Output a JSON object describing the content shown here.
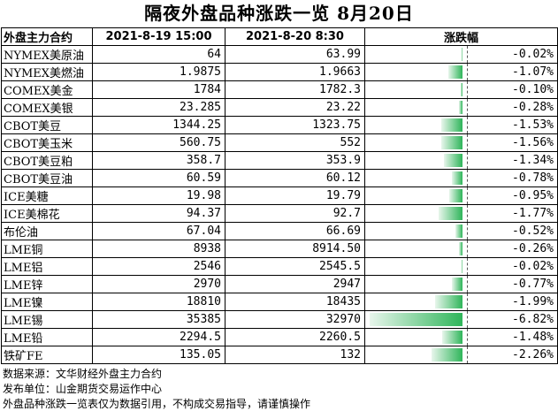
{
  "title": "隔夜外盘品种涨跌一览  8月20日",
  "headers": {
    "contract": "外盘主力合约",
    "prev": "2021-8-19 15:00",
    "curr": "2021-8-20 8:30",
    "change": "涨跌幅"
  },
  "colors": {
    "bar_dark": "#2fb55a",
    "bar_light": "#e8f6ec"
  },
  "rows": [
    {
      "name": "NYMEX美原油",
      "prev": "64",
      "curr": "63.99",
      "change": "-0.02%",
      "pct": -0.02
    },
    {
      "name": "NYMEX美燃油",
      "prev": "1.9875",
      "curr": "1.9663",
      "change": "-1.07%",
      "pct": -1.07
    },
    {
      "name": "COMEX美金",
      "prev": "1784",
      "curr": "1782.3",
      "change": "-0.10%",
      "pct": -0.1
    },
    {
      "name": "COMEX美银",
      "prev": "23.285",
      "curr": "23.22",
      "change": "-0.28%",
      "pct": -0.28
    },
    {
      "name": "CBOT美豆",
      "prev": "1344.25",
      "curr": "1323.75",
      "change": "-1.53%",
      "pct": -1.53
    },
    {
      "name": "CBOT美玉米",
      "prev": "560.75",
      "curr": "552",
      "change": "-1.56%",
      "pct": -1.56
    },
    {
      "name": "CBOT美豆粕",
      "prev": "358.7",
      "curr": "353.9",
      "change": "-1.34%",
      "pct": -1.34
    },
    {
      "name": "CBOT美豆油",
      "prev": "60.59",
      "curr": "60.12",
      "change": "-0.78%",
      "pct": -0.78
    },
    {
      "name": "ICE美糖",
      "prev": "19.98",
      "curr": "19.79",
      "change": "-0.95%",
      "pct": -0.95
    },
    {
      "name": "ICE美棉花",
      "prev": "94.37",
      "curr": "92.7",
      "change": "-1.77%",
      "pct": -1.77
    },
    {
      "name": "布伦油",
      "prev": "67.04",
      "curr": "66.69",
      "change": "-0.52%",
      "pct": -0.52
    },
    {
      "name": "LME铜",
      "prev": "8938",
      "curr": "8914.50",
      "change": "-0.26%",
      "pct": -0.26
    },
    {
      "name": "LME铝",
      "prev": "2546",
      "curr": "2545.5",
      "change": "-0.02%",
      "pct": -0.02
    },
    {
      "name": "LME锌",
      "prev": "2970",
      "curr": "2947",
      "change": "-0.77%",
      "pct": -0.77
    },
    {
      "name": "LME镍",
      "prev": "18810",
      "curr": "18435",
      "change": "-1.99%",
      "pct": -1.99
    },
    {
      "name": "LME锡",
      "prev": "35385",
      "curr": "32970",
      "change": "-6.82%",
      "pct": -6.82
    },
    {
      "name": "LME铅",
      "prev": "2294.5",
      "curr": "2260.5",
      "change": "-1.48%",
      "pct": -1.48
    },
    {
      "name": "铁矿FE",
      "prev": "135.05",
      "curr": "132",
      "change": "-2.26%",
      "pct": -2.26
    }
  ],
  "footer": [
    "数据来源：文华财经外盘主力合约",
    "发布单位：山金期货交易运作中心",
    "外盘品种涨跌一览表仅为数据引用，不构成交易指导，请谨慎操作"
  ]
}
